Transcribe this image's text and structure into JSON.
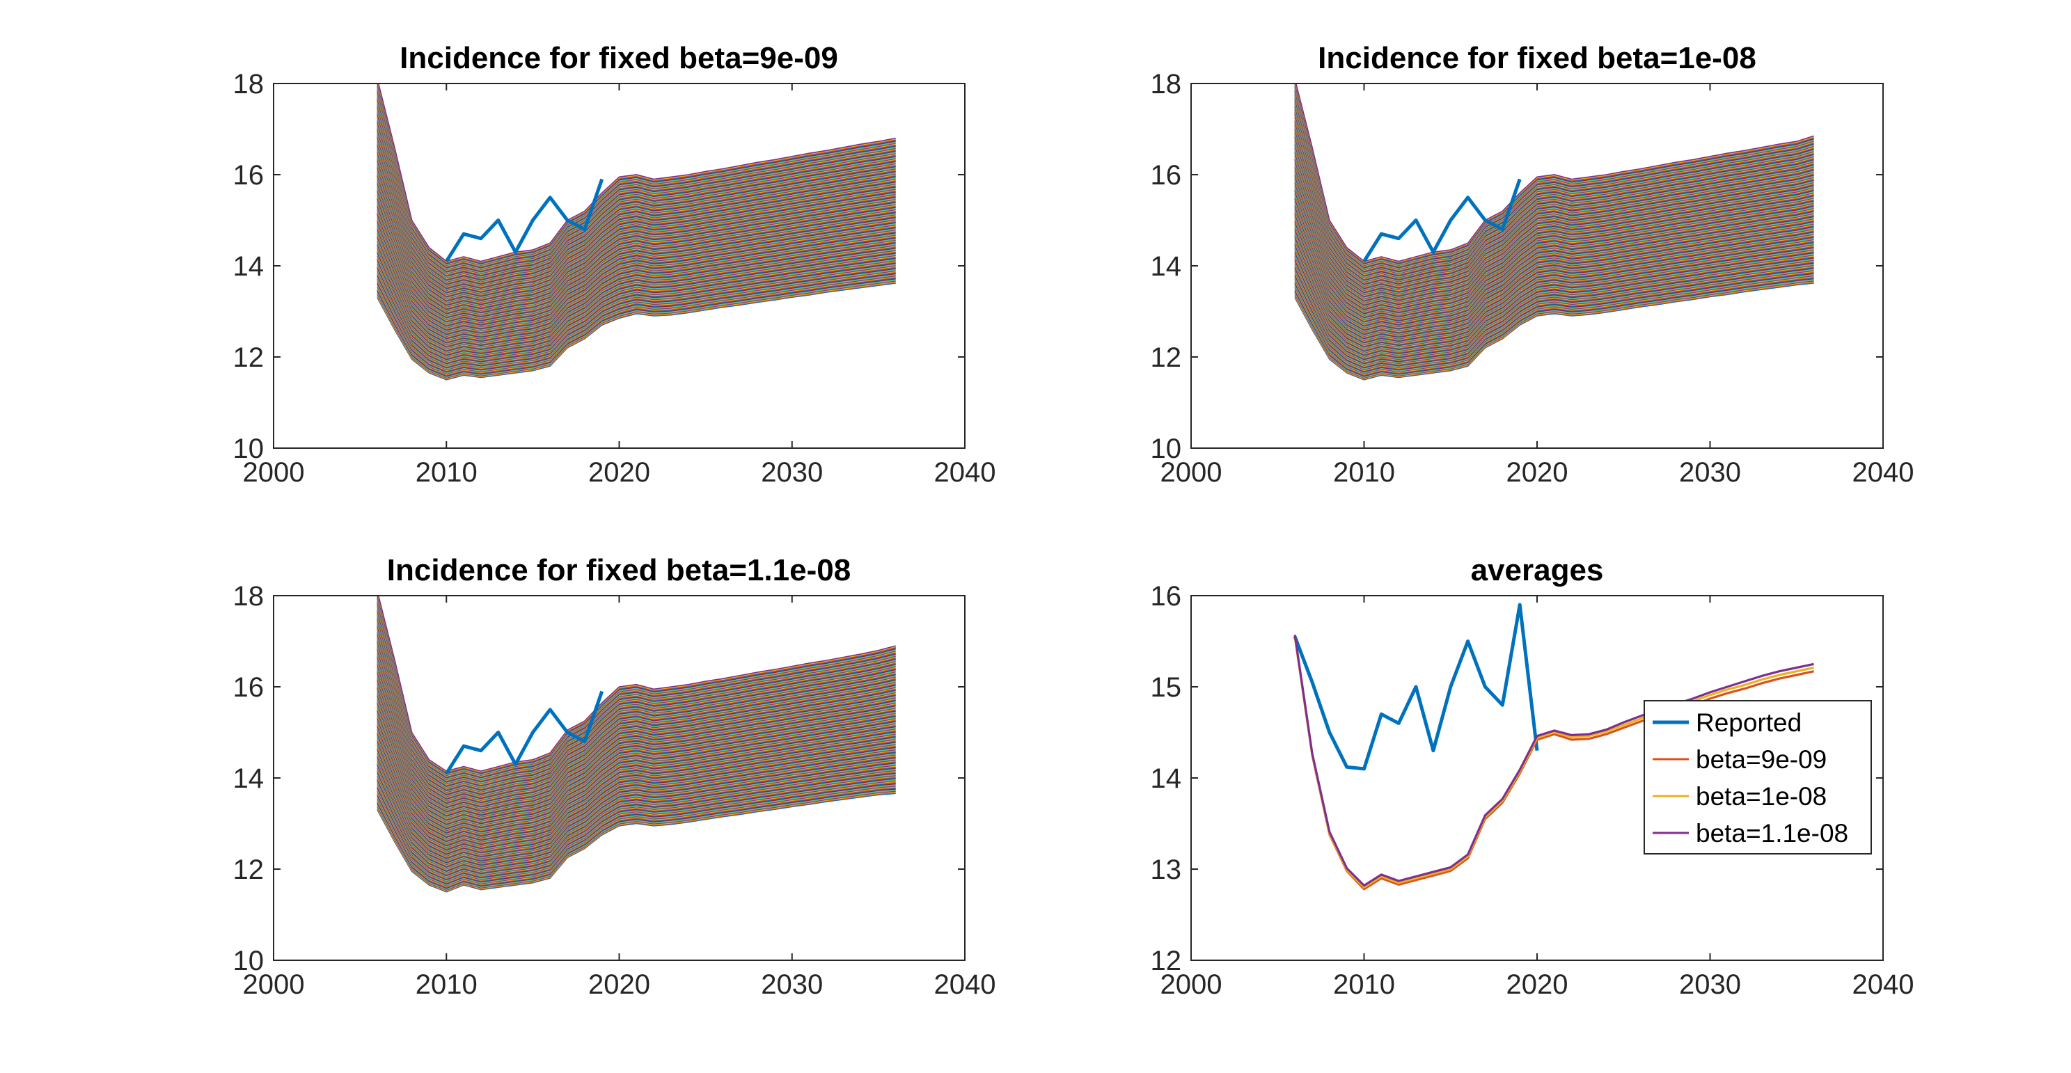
{
  "chart_data": [
    {
      "type": "line",
      "title": "Incidence for fixed beta=9e-09",
      "xlim": [
        2000,
        2040
      ],
      "ylim": [
        10,
        18
      ],
      "xticks": [
        "2000",
        "2010",
        "2020",
        "2030",
        "2040"
      ],
      "yticks": [
        "10",
        "12",
        "14",
        "16",
        "18"
      ],
      "grid": false,
      "ensemble": {
        "count": 200,
        "x": [
          2006,
          2007,
          2008,
          2009,
          2010,
          2011,
          2012,
          2013,
          2014,
          2015,
          2016,
          2017,
          2018,
          2019,
          2020,
          2021,
          2022,
          2023,
          2024,
          2025,
          2026,
          2027,
          2028,
          2029,
          2030,
          2031,
          2032,
          2033,
          2034,
          2035,
          2036
        ],
        "upper_envelope": [
          18.1,
          16.6,
          15.0,
          14.4,
          14.1,
          14.2,
          14.1,
          14.2,
          14.3,
          14.35,
          14.5,
          15.0,
          15.2,
          15.6,
          15.95,
          16.0,
          15.9,
          15.95,
          16.0,
          16.07,
          16.13,
          16.2,
          16.27,
          16.33,
          16.4,
          16.47,
          16.53,
          16.6,
          16.67,
          16.73,
          16.8
        ],
        "lower_envelope": [
          13.3,
          12.6,
          11.95,
          11.65,
          11.5,
          11.6,
          11.55,
          11.6,
          11.65,
          11.7,
          11.8,
          12.2,
          12.4,
          12.7,
          12.85,
          12.95,
          12.9,
          12.92,
          12.97,
          13.03,
          13.09,
          13.14,
          13.2,
          13.25,
          13.31,
          13.36,
          13.42,
          13.47,
          13.52,
          13.57,
          13.62
        ]
      },
      "series": [
        {
          "name": "",
          "x": [
            2010,
            2011,
            2012,
            2013,
            2014,
            2015,
            2016,
            2017,
            2018,
            2019
          ],
          "values": [
            14.1,
            14.7,
            14.6,
            15.0,
            14.3,
            15.0,
            15.5,
            15.0,
            14.8,
            15.9
          ]
        }
      ]
    },
    {
      "type": "line",
      "title": "Incidence for fixed beta=1e-08",
      "xlim": [
        2000,
        2040
      ],
      "ylim": [
        10,
        18
      ],
      "xticks": [
        "2000",
        "2010",
        "2020",
        "2030",
        "2040"
      ],
      "yticks": [
        "10",
        "12",
        "14",
        "16",
        "18"
      ],
      "grid": false,
      "ensemble": {
        "count": 200,
        "x": [
          2006,
          2007,
          2008,
          2009,
          2010,
          2011,
          2012,
          2013,
          2014,
          2015,
          2016,
          2017,
          2018,
          2019,
          2020,
          2021,
          2022,
          2023,
          2024,
          2025,
          2026,
          2027,
          2028,
          2029,
          2030,
          2031,
          2032,
          2033,
          2034,
          2035,
          2036
        ],
        "upper_envelope": [
          18.1,
          16.6,
          15.0,
          14.4,
          14.1,
          14.2,
          14.1,
          14.2,
          14.3,
          14.35,
          14.5,
          15.0,
          15.2,
          15.6,
          15.95,
          16.0,
          15.9,
          15.95,
          16.0,
          16.07,
          16.13,
          16.2,
          16.27,
          16.33,
          16.4,
          16.47,
          16.53,
          16.6,
          16.67,
          16.73,
          16.85
        ],
        "lower_envelope": [
          13.3,
          12.6,
          11.95,
          11.65,
          11.5,
          11.6,
          11.55,
          11.6,
          11.65,
          11.7,
          11.8,
          12.2,
          12.4,
          12.7,
          12.9,
          12.95,
          12.9,
          12.93,
          12.98,
          13.04,
          13.1,
          13.15,
          13.21,
          13.26,
          13.32,
          13.37,
          13.43,
          13.48,
          13.53,
          13.58,
          13.62
        ]
      },
      "series": [
        {
          "name": "",
          "x": [
            2010,
            2011,
            2012,
            2013,
            2014,
            2015,
            2016,
            2017,
            2018,
            2019
          ],
          "values": [
            14.1,
            14.7,
            14.6,
            15.0,
            14.3,
            15.0,
            15.5,
            15.0,
            14.8,
            15.9
          ]
        }
      ]
    },
    {
      "type": "line",
      "title": "Incidence for fixed beta=1.1e-08",
      "xlim": [
        2000,
        2040
      ],
      "ylim": [
        10,
        18
      ],
      "xticks": [
        "2000",
        "2010",
        "2020",
        "2030",
        "2040"
      ],
      "yticks": [
        "10",
        "12",
        "14",
        "16",
        "18"
      ],
      "grid": false,
      "ensemble": {
        "count": 200,
        "x": [
          2006,
          2007,
          2008,
          2009,
          2010,
          2011,
          2012,
          2013,
          2014,
          2015,
          2016,
          2017,
          2018,
          2019,
          2020,
          2021,
          2022,
          2023,
          2024,
          2025,
          2026,
          2027,
          2028,
          2029,
          2030,
          2031,
          2032,
          2033,
          2034,
          2035,
          2036
        ],
        "upper_envelope": [
          18.1,
          16.6,
          15.0,
          14.4,
          14.15,
          14.25,
          14.15,
          14.25,
          14.35,
          14.4,
          14.55,
          15.05,
          15.25,
          15.65,
          16.0,
          16.05,
          15.95,
          16.0,
          16.05,
          16.12,
          16.18,
          16.25,
          16.32,
          16.38,
          16.45,
          16.52,
          16.58,
          16.65,
          16.72,
          16.8,
          16.9
        ],
        "lower_envelope": [
          13.3,
          12.6,
          11.95,
          11.65,
          11.5,
          11.65,
          11.55,
          11.6,
          11.65,
          11.7,
          11.8,
          12.25,
          12.45,
          12.75,
          12.95,
          13.0,
          12.95,
          12.98,
          13.03,
          13.09,
          13.15,
          13.2,
          13.26,
          13.31,
          13.37,
          13.42,
          13.48,
          13.53,
          13.58,
          13.63,
          13.66
        ]
      },
      "series": [
        {
          "name": "",
          "x": [
            2010,
            2011,
            2012,
            2013,
            2014,
            2015,
            2016,
            2017,
            2018,
            2019
          ],
          "values": [
            14.1,
            14.7,
            14.6,
            15.0,
            14.3,
            15.0,
            15.5,
            15.0,
            14.8,
            15.9
          ]
        }
      ]
    },
    {
      "type": "line",
      "title": "averages",
      "xlim": [
        2000,
        2040
      ],
      "ylim": [
        12,
        16
      ],
      "xticks": [
        "2000",
        "2010",
        "2020",
        "2030",
        "2040"
      ],
      "yticks": [
        "12",
        "13",
        "14",
        "15",
        "16"
      ],
      "grid": false,
      "legend": "right",
      "series": [
        {
          "name": "Reported",
          "color": "#0072BD",
          "x": [
            2006,
            2007,
            2008,
            2009,
            2010,
            2011,
            2012,
            2013,
            2014,
            2015,
            2016,
            2017,
            2018,
            2019,
            2020
          ],
          "values": [
            15.55,
            15.05,
            14.5,
            14.12,
            14.1,
            14.7,
            14.6,
            15.0,
            14.3,
            15.0,
            15.5,
            15.0,
            14.8,
            15.9,
            14.3
          ]
        },
        {
          "name": "beta=9e-09",
          "color": "#D95319",
          "x": [
            2006,
            2007,
            2008,
            2009,
            2010,
            2011,
            2012,
            2013,
            2014,
            2015,
            2016,
            2017,
            2018,
            2019,
            2020,
            2021,
            2022,
            2023,
            2024,
            2025,
            2026,
            2027,
            2028,
            2029,
            2030,
            2031,
            2032,
            2033,
            2034,
            2035,
            2036
          ],
          "values": [
            15.55,
            14.25,
            13.38,
            12.98,
            12.78,
            12.9,
            12.83,
            12.88,
            12.93,
            12.98,
            13.12,
            13.55,
            13.73,
            14.05,
            14.42,
            14.48,
            14.42,
            14.43,
            14.48,
            14.55,
            14.62,
            14.68,
            14.74,
            14.8,
            14.87,
            14.93,
            14.98,
            15.04,
            15.09,
            15.13,
            15.17
          ]
        },
        {
          "name": "beta=1e-08",
          "color": "#EDB120",
          "x": [
            2006,
            2007,
            2008,
            2009,
            2010,
            2011,
            2012,
            2013,
            2014,
            2015,
            2016,
            2017,
            2018,
            2019,
            2020,
            2021,
            2022,
            2023,
            2024,
            2025,
            2026,
            2027,
            2028,
            2029,
            2030,
            2031,
            2032,
            2033,
            2034,
            2035,
            2036
          ],
          "values": [
            15.56,
            14.26,
            13.39,
            12.99,
            12.8,
            12.92,
            12.85,
            12.9,
            12.95,
            13.0,
            13.14,
            13.57,
            13.75,
            14.07,
            14.44,
            14.5,
            14.45,
            14.46,
            14.51,
            14.58,
            14.65,
            14.72,
            14.78,
            14.84,
            14.91,
            14.97,
            15.02,
            15.08,
            15.13,
            15.17,
            15.21
          ]
        },
        {
          "name": "beta=1.1e-08",
          "color": "#7E2F8E",
          "x": [
            2006,
            2007,
            2008,
            2009,
            2010,
            2011,
            2012,
            2013,
            2014,
            2015,
            2016,
            2017,
            2018,
            2019,
            2020,
            2021,
            2022,
            2023,
            2024,
            2025,
            2026,
            2027,
            2028,
            2029,
            2030,
            2031,
            2032,
            2033,
            2034,
            2035,
            2036
          ],
          "values": [
            15.57,
            14.27,
            13.41,
            13.01,
            12.82,
            12.94,
            12.87,
            12.92,
            12.97,
            13.02,
            13.16,
            13.59,
            13.77,
            14.09,
            14.46,
            14.52,
            14.47,
            14.48,
            14.53,
            14.61,
            14.68,
            14.75,
            14.81,
            14.87,
            14.94,
            15.0,
            15.06,
            15.12,
            15.17,
            15.21,
            15.25
          ]
        }
      ]
    }
  ]
}
